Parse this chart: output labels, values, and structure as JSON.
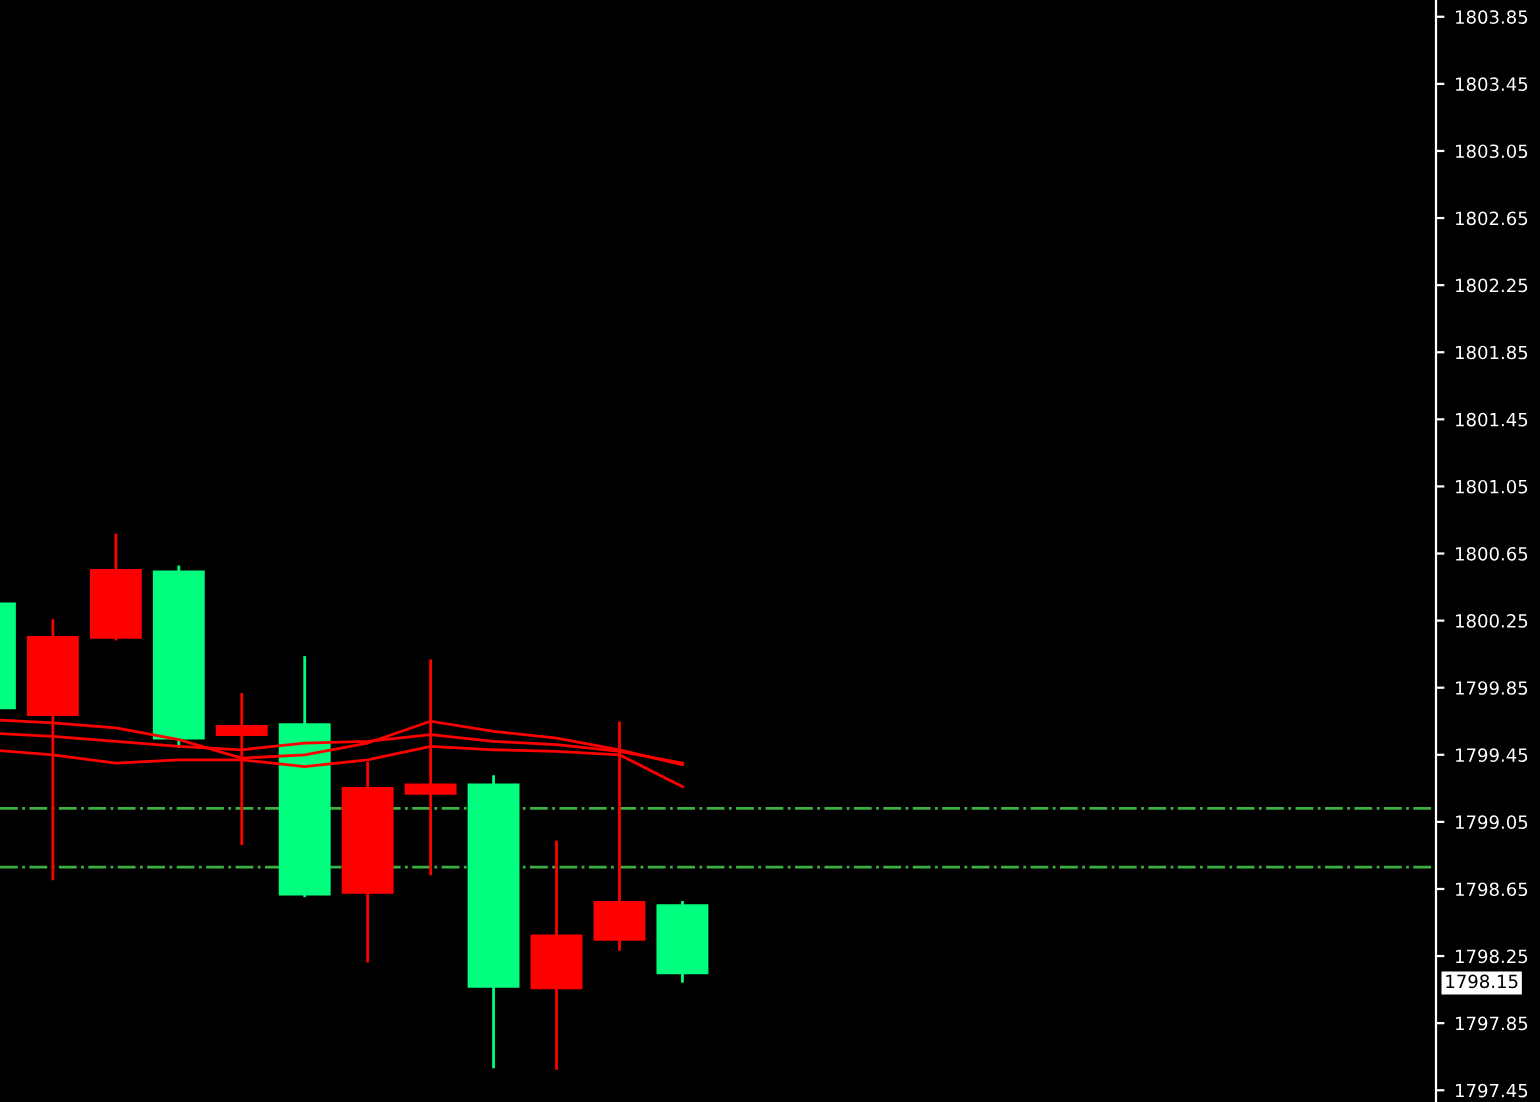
{
  "chart_data": {
    "type": "candlestick",
    "categories": [
      null,
      null,
      null,
      null,
      null,
      null,
      null,
      null,
      null,
      null,
      null,
      null,
      null,
      null,
      null,
      null,
      null,
      null,
      null,
      null,
      null,
      null,
      null
    ],
    "ohlc": [
      [
        1800.35,
        1800.36,
        1799.72,
        1799.73
      ],
      [
        1799.69,
        1800.25,
        1798.71,
        1800.15
      ],
      [
        1800.15,
        1800.76,
        1800.14,
        1800.55
      ],
      [
        1800.54,
        1800.57,
        1799.5,
        1799.55
      ],
      [
        1799.57,
        1799.81,
        1798.92,
        1799.62
      ],
      [
        1799.63,
        1800.03,
        1798.61,
        1798.62
      ],
      [
        1798.63,
        1799.4,
        1798.22,
        1799.25
      ],
      [
        1799.22,
        1800.01,
        1798.74,
        1799.27
      ],
      [
        1799.27,
        1799.32,
        1797.59,
        1798.07
      ],
      [
        1798.06,
        1798.93,
        1797.58,
        1798.37
      ],
      [
        1798.35,
        1799.64,
        1798.29,
        1798.57
      ],
      [
        1798.55,
        1798.57,
        1798.1,
        1798.15
      ],
      null,
      null,
      null,
      null,
      null,
      null,
      null,
      null,
      null,
      null,
      null
    ],
    "colors": [
      "#00ff7f",
      "#ff0000",
      "#ff0000",
      "#00ff7f",
      "#ff0000",
      "#00ff7f",
      "#ff0000",
      "#ff0000",
      "#00ff7f",
      "#ff0000",
      "#ff0000",
      "#00ff7f",
      null,
      null,
      null,
      null,
      null,
      null,
      null,
      null,
      null,
      null,
      null
    ],
    "series": [
      {
        "type": "line",
        "color": "#ff0000",
        "values": [
          1799.66,
          1799.64,
          1799.61,
          1799.54,
          1799.43,
          1799.45,
          1799.52,
          1799.65,
          1799.59,
          1799.55,
          1799.48,
          1799.39,
          null,
          null,
          null,
          null,
          null,
          null,
          null,
          null,
          null,
          null,
          null
        ]
      },
      {
        "type": "line",
        "color": "#ff0000",
        "values": [
          1799.58,
          1799.56,
          1799.53,
          1799.5,
          1799.48,
          1799.52,
          1799.53,
          1799.57,
          1799.53,
          1799.51,
          1799.47,
          1799.4,
          null,
          null,
          null,
          null,
          null,
          null,
          null,
          null,
          null,
          null,
          null
        ]
      },
      {
        "type": "line",
        "color": "#ff0000",
        "values": [
          1799.48,
          1799.45,
          1799.4,
          1799.42,
          1799.42,
          1799.38,
          1799.42,
          1799.5,
          1799.48,
          1799.47,
          1799.45,
          1799.26,
          null,
          null,
          null,
          null,
          null,
          null,
          null,
          null,
          null,
          null,
          null
        ]
      }
    ],
    "ylim": [
      1797.38,
      1803.95
    ],
    "yticks": [
      1797.45,
      1797.85,
      1798.25,
      1798.65,
      1799.05,
      1799.45,
      1799.85,
      1800.25,
      1800.65,
      1801.05,
      1801.45,
      1801.85,
      1802.25,
      1802.65,
      1803.05,
      1803.45,
      1803.85
    ],
    "ref_lines": [
      {
        "axis": "y",
        "value": 1799.13,
        "color": "#3cb043",
        "line_style": "dashdot"
      },
      {
        "axis": "y",
        "value": 1798.78,
        "color": "#3cb043",
        "line_style": "dashdot"
      }
    ],
    "annotations": [
      "1798.15"
    ],
    "grid": false,
    "tick_labels": "y"
  }
}
